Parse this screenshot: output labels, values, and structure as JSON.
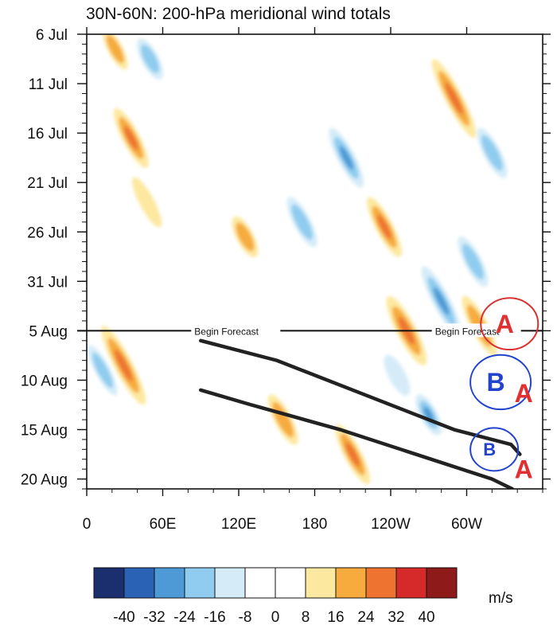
{
  "chart_data": {
    "type": "heatmap",
    "title": "30N-60N: 200-hPa meridional wind totals",
    "x_tick_labels": [
      "0",
      "60E",
      "120E",
      "180",
      "120W",
      "60W"
    ],
    "x_tick_positions_deg": [
      0,
      60,
      120,
      180,
      240,
      300
    ],
    "xlim_deg": [
      0,
      360
    ],
    "y_tick_labels": [
      "6 Jul",
      "11 Jul",
      "16 Jul",
      "21 Jul",
      "26 Jul",
      "31 Jul",
      "5 Aug",
      "10 Aug",
      "15 Aug",
      "20 Aug"
    ],
    "y_tick_days": [
      0,
      5,
      10,
      15,
      20,
      25,
      30,
      35,
      40,
      45
    ],
    "ylim_days": [
      0,
      46
    ],
    "forecast_start_day": 30,
    "forecast_labels": [
      "Begin Forecast",
      "Begin Forecast"
    ],
    "colorbar": {
      "levels": [
        "-40",
        "-32",
        "-24",
        "-16",
        "-8",
        "0",
        "8",
        "16",
        "24",
        "32",
        "40"
      ],
      "colors": [
        "#1b2f6e",
        "#2a63b5",
        "#4d9ad6",
        "#8fccef",
        "#d5ecf8",
        "#ffffff",
        "#ffffff",
        "#fde8a0",
        "#f6ab3c",
        "#ee7330",
        "#d62a2a",
        "#8e1a1a"
      ],
      "unit": "m/s"
    },
    "anomaly_streaks": [
      {
        "sign": "positive",
        "lon": [
          18,
          40
        ],
        "day": [
          30,
          37
        ],
        "strength": 3
      },
      {
        "sign": "positive",
        "lon": [
          15,
          30
        ],
        "day": [
          0,
          3
        ],
        "strength": 2
      },
      {
        "sign": "positive",
        "lon": [
          25,
          45
        ],
        "day": [
          8,
          13
        ],
        "strength": 3
      },
      {
        "sign": "positive",
        "lon": [
          40,
          55
        ],
        "day": [
          15,
          19
        ],
        "strength": 1
      },
      {
        "sign": "positive",
        "lon": [
          115,
          135
        ],
        "day": [
          19,
          22
        ],
        "strength": 2
      },
      {
        "sign": "positive",
        "lon": [
          240,
          265
        ],
        "day": [
          27,
          33
        ],
        "strength": 3
      },
      {
        "sign": "positive",
        "lon": [
          225,
          245
        ],
        "day": [
          17,
          22
        ],
        "strength": 3
      },
      {
        "sign": "positive",
        "lon": [
          280,
          300
        ],
        "day": [
          3,
          10
        ],
        "strength": 3
      },
      {
        "sign": "positive",
        "lon": [
          200,
          220
        ],
        "day": [
          40,
          45
        ],
        "strength": 3
      },
      {
        "sign": "positive",
        "lon": [
          300,
          320
        ],
        "day": [
          27,
          32
        ],
        "strength": 2
      },
      {
        "sign": "positive",
        "lon": [
          145,
          165
        ],
        "day": [
          37,
          41
        ],
        "strength": 2
      },
      {
        "sign": "negative",
        "lon": [
          195,
          215
        ],
        "day": [
          10,
          15
        ],
        "strength": 3
      },
      {
        "sign": "negative",
        "lon": [
          295,
          315
        ],
        "day": [
          21,
          25
        ],
        "strength": 2
      },
      {
        "sign": "negative",
        "lon": [
          270,
          290
        ],
        "day": [
          24,
          30
        ],
        "strength": 3
      },
      {
        "sign": "negative",
        "lon": [
          260,
          280
        ],
        "day": [
          37,
          40
        ],
        "strength": 3
      },
      {
        "sign": "negative",
        "lon": [
          40,
          60
        ],
        "day": [
          1,
          4
        ],
        "strength": 2
      },
      {
        "sign": "negative",
        "lon": [
          310,
          330
        ],
        "day": [
          10,
          14
        ],
        "strength": 2
      },
      {
        "sign": "negative",
        "lon": [
          5,
          20
        ],
        "day": [
          32,
          36
        ],
        "strength": 2
      },
      {
        "sign": "negative",
        "lon": [
          160,
          180
        ],
        "day": [
          17,
          21
        ],
        "strength": 2
      },
      {
        "sign": "negative",
        "lon": [
          235,
          255
        ],
        "day": [
          33,
          36
        ],
        "strength": 1
      }
    ],
    "trough_ridge_lines": [
      {
        "points": [
          [
            90,
            31
          ],
          [
            150,
            33
          ],
          [
            220,
            36.5
          ],
          [
            290,
            40
          ],
          [
            335,
            41.5
          ],
          [
            342,
            42.5
          ]
        ]
      },
      {
        "points": [
          [
            90,
            36
          ],
          [
            130,
            37.5
          ],
          [
            200,
            40
          ],
          [
            260,
            42.5
          ],
          [
            320,
            45
          ],
          [
            336,
            46
          ]
        ]
      }
    ],
    "annotations": [
      {
        "label": "A",
        "ring_color": "#d93030",
        "text_color": "#e03030",
        "lon": 330,
        "day": 29.3
      },
      {
        "label": "B",
        "ring_color": "#2244cc",
        "text_color": "#2244cc",
        "lon": 323,
        "day": 35.2
      },
      {
        "label": "A",
        "ring_color": "",
        "text_color": "#e03030",
        "lon": 345,
        "day": 36.3
      },
      {
        "label": "B",
        "ring_color": "#2244cc",
        "text_color": "#2244cc",
        "lon": 318,
        "day": 42
      },
      {
        "label": "A",
        "ring_color": "",
        "text_color": "#e03030",
        "lon": 345,
        "day": 44
      }
    ]
  }
}
